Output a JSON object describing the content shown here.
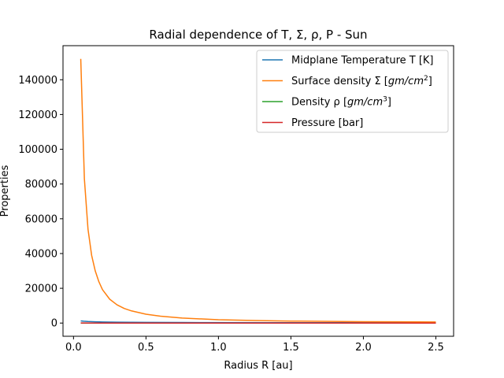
{
  "chart_data": {
    "type": "line",
    "title": "Radial dependence of T, Σ, ρ, P - Sun",
    "xlabel": "Radius R [au]",
    "ylabel": "Properties",
    "xlim": [
      -0.0725,
      2.6225
    ],
    "ylim": [
      -7600,
      159600
    ],
    "xticks": [
      0.0,
      0.5,
      1.0,
      1.5,
      2.0,
      2.5
    ],
    "xtick_labels": [
      "0.0",
      "0.5",
      "1.0",
      "1.5",
      "2.0",
      "2.5"
    ],
    "yticks": [
      0,
      20000,
      40000,
      60000,
      80000,
      100000,
      120000,
      140000
    ],
    "ytick_labels": [
      "0",
      "20000",
      "40000",
      "60000",
      "80000",
      "100000",
      "120000",
      "140000"
    ],
    "grid": false,
    "legend_position": "top-right",
    "series": [
      {
        "name": "Midplane Temperature T [K]",
        "legend_base": "Midplane Temperature T [K]",
        "legend_sup": "",
        "legend_tail": "",
        "color": "#1f77b4",
        "x": [
          0.05,
          0.07,
          0.1,
          0.15,
          0.2,
          0.3,
          0.5,
          0.75,
          1.0,
          1.5,
          2.0,
          2.5
        ],
        "y": [
          1240,
          1050,
          880,
          720,
          620,
          510,
          400,
          320,
          280,
          230,
          200,
          180
        ]
      },
      {
        "name": "Surface density Σ [gm/cm²]",
        "legend_base": "Surface density Σ [",
        "legend_sup": "2",
        "legend_tail": "]",
        "legend_math": "gm/cm",
        "color": "#ff7f0e",
        "x": [
          0.05,
          0.075,
          0.1,
          0.125,
          0.15,
          0.175,
          0.2,
          0.25,
          0.3,
          0.35,
          0.4,
          0.5,
          0.6,
          0.75,
          1.0,
          1.25,
          1.5,
          2.0,
          2.5
        ],
        "y": [
          152000,
          83000,
          54000,
          39000,
          30000,
          23800,
          19200,
          13700,
          10500,
          8400,
          7000,
          5100,
          3950,
          2900,
          1900,
          1450,
          1150,
          800,
          600
        ]
      },
      {
        "name": "Density ρ [gm/cm³]",
        "legend_base": "Density ρ [",
        "legend_sup": "3",
        "legend_tail": "]",
        "legend_math": "gm/cm",
        "color": "#2ca02c",
        "x": [
          0.05,
          0.5,
          1.0,
          1.5,
          2.0,
          2.5
        ],
        "y": [
          0.0001,
          1e-05,
          2e-06,
          1e-06,
          5e-07,
          3e-07
        ]
      },
      {
        "name": "Pressure [bar]",
        "legend_base": "Pressure [bar]",
        "legend_sup": "",
        "legend_tail": "",
        "color": "#d62728",
        "x": [
          0.05,
          0.5,
          1.0,
          1.5,
          2.0,
          2.5
        ],
        "y": [
          20,
          5,
          2,
          1,
          0.5,
          0.3
        ]
      }
    ]
  }
}
